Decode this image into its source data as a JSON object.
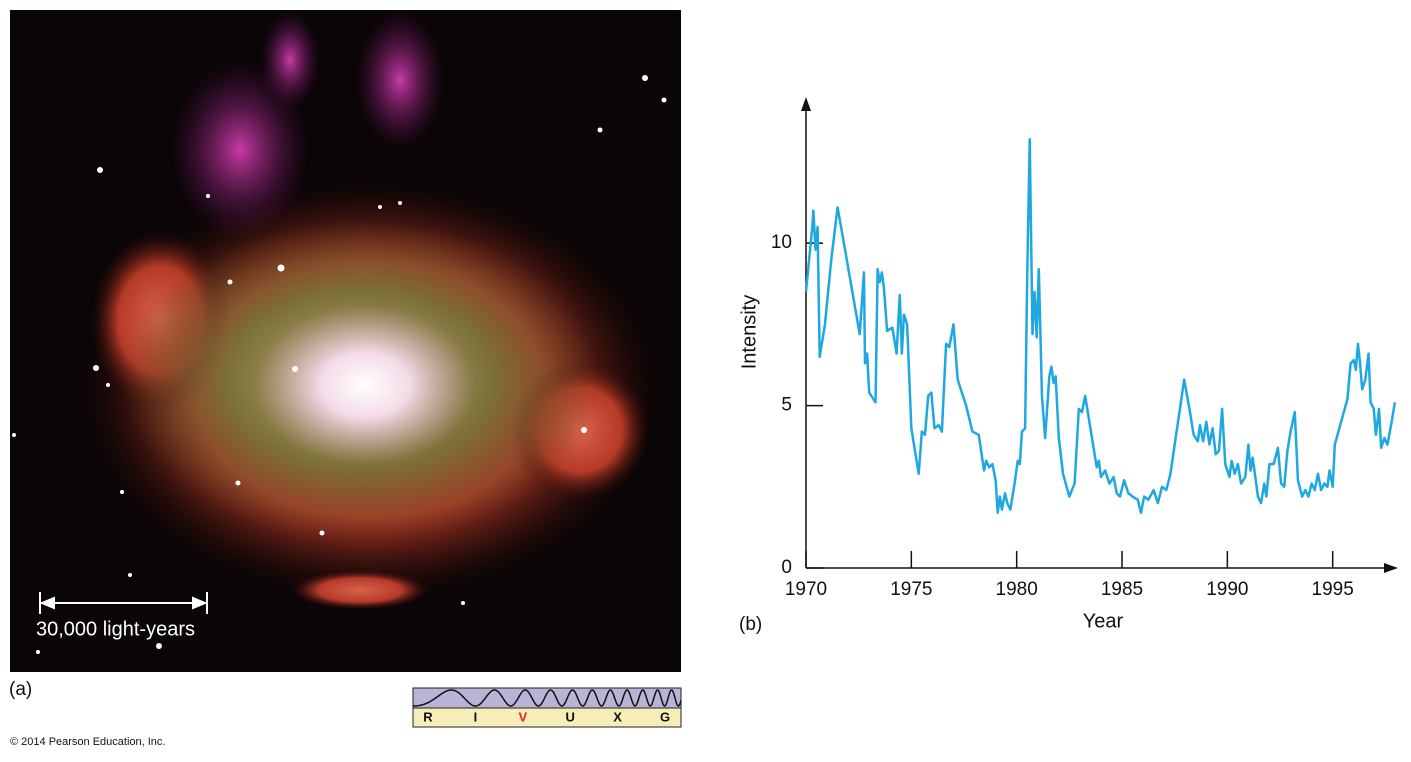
{
  "panel_a": {
    "label": "(a)",
    "scale_bar": "30,000 light-years",
    "spectrum": [
      "R",
      "I",
      "V",
      "U",
      "X",
      "G"
    ],
    "highlighted": "V"
  },
  "credit": "© 2014 Pearson Education, Inc.",
  "chart_data": {
    "type": "line",
    "panel_label": "(b)",
    "xlabel": "Year",
    "ylabel": "Intensity",
    "color": "#1fa8e0",
    "xlim": [
      1970,
      1998.1
    ],
    "ylim": [
      0,
      14.5
    ],
    "xticks": [
      1970,
      1975,
      1980,
      1985,
      1990,
      1995
    ],
    "yticks": [
      0,
      5,
      10
    ],
    "x": [
      1970.0,
      1970.15,
      1970.3,
      1970.35,
      1970.45,
      1970.55,
      1970.65,
      1970.9,
      1971.2,
      1971.5,
      1971.8,
      1972.2,
      1972.55,
      1972.75,
      1972.8,
      1972.9,
      1973.0,
      1973.3,
      1973.4,
      1973.5,
      1973.6,
      1973.7,
      1973.85,
      1974.1,
      1974.3,
      1974.45,
      1974.55,
      1974.65,
      1974.8,
      1975.0,
      1975.2,
      1975.35,
      1975.5,
      1975.65,
      1975.8,
      1975.95,
      1976.1,
      1976.3,
      1976.45,
      1976.65,
      1976.8,
      1977.0,
      1977.2,
      1977.35,
      1977.6,
      1977.9,
      1978.2,
      1978.45,
      1978.55,
      1978.7,
      1978.85,
      1979.0,
      1979.1,
      1979.2,
      1979.3,
      1979.45,
      1979.55,
      1979.7,
      1979.9,
      1980.05,
      1980.15,
      1980.25,
      1980.4,
      1980.5,
      1980.62,
      1980.75,
      1980.85,
      1980.95,
      1981.05,
      1981.2,
      1981.35,
      1981.55,
      1981.65,
      1981.75,
      1981.85,
      1982.0,
      1982.2,
      1982.5,
      1982.75,
      1982.95,
      1983.1,
      1983.25,
      1983.5,
      1983.8,
      1983.9,
      1984.0,
      1984.2,
      1984.4,
      1984.6,
      1984.75,
      1984.9,
      1985.1,
      1985.3,
      1985.5,
      1985.75,
      1985.9,
      1986.05,
      1986.25,
      1986.5,
      1986.7,
      1986.9,
      1987.1,
      1987.3,
      1987.5,
      1987.75,
      1987.95,
      1988.2,
      1988.4,
      1988.6,
      1988.7,
      1988.85,
      1989.0,
      1989.15,
      1989.3,
      1989.45,
      1989.6,
      1989.75,
      1989.9,
      1990.1,
      1990.2,
      1990.35,
      1990.5,
      1990.65,
      1990.85,
      1991.0,
      1991.1,
      1991.2,
      1991.35,
      1991.45,
      1991.6,
      1991.75,
      1991.85,
      1992.0,
      1992.2,
      1992.4,
      1992.55,
      1992.7,
      1992.85,
      1993.0,
      1993.2,
      1993.35,
      1993.55,
      1993.7,
      1993.85,
      1994.0,
      1994.15,
      1994.3,
      1994.45,
      1994.6,
      1994.75,
      1994.85,
      1995.0,
      1995.1,
      1995.4,
      1995.7,
      1995.85,
      1996.0,
      1996.1,
      1996.2,
      1996.3,
      1996.4,
      1996.55,
      1996.7,
      1996.8,
      1996.95,
      1997.05,
      1997.2,
      1997.3,
      1997.45,
      1997.6,
      1997.8,
      1997.95
    ],
    "values": [
      8.5,
      9.5,
      10.5,
      11.0,
      9.8,
      10.5,
      6.5,
      7.5,
      9.5,
      11.1,
      10.0,
      8.5,
      7.2,
      9.1,
      6.3,
      6.6,
      5.4,
      5.1,
      9.2,
      8.8,
      9.1,
      8.6,
      7.3,
      7.4,
      6.6,
      8.4,
      6.6,
      7.8,
      7.5,
      4.3,
      3.5,
      2.9,
      4.2,
      4.1,
      5.3,
      5.4,
      4.3,
      4.4,
      4.2,
      6.9,
      6.8,
      7.5,
      5.8,
      5.5,
      5.0,
      4.2,
      4.1,
      3.0,
      3.3,
      3.1,
      3.2,
      2.7,
      1.7,
      2.2,
      1.8,
      2.3,
      2.0,
      1.8,
      2.6,
      3.3,
      3.2,
      4.2,
      4.3,
      9.0,
      13.2,
      7.2,
      8.5,
      7.1,
      9.2,
      5.3,
      4.0,
      5.9,
      6.2,
      5.7,
      5.9,
      4.0,
      2.9,
      2.2,
      2.6,
      4.9,
      4.8,
      5.3,
      4.3,
      3.1,
      3.3,
      2.8,
      3.0,
      2.6,
      2.8,
      2.3,
      2.2,
      2.7,
      2.3,
      2.2,
      2.1,
      1.7,
      2.2,
      2.1,
      2.4,
      2.0,
      2.5,
      2.4,
      2.9,
      3.8,
      4.9,
      5.8,
      4.9,
      4.1,
      3.9,
      4.4,
      3.9,
      4.5,
      3.8,
      4.3,
      3.5,
      3.6,
      4.9,
      3.2,
      2.8,
      3.3,
      2.9,
      3.2,
      2.6,
      2.8,
      3.8,
      3.0,
      3.4,
      2.7,
      2.2,
      2.0,
      2.6,
      2.2,
      3.2,
      3.2,
      3.7,
      2.6,
      2.5,
      3.6,
      4.2,
      4.8,
      2.7,
      2.2,
      2.4,
      2.2,
      2.6,
      2.4,
      2.9,
      2.4,
      2.6,
      2.5,
      3.0,
      2.5,
      3.8,
      4.5,
      5.2,
      6.3,
      6.4,
      6.1,
      6.9,
      6.3,
      5.5,
      5.8,
      6.6,
      5.1,
      4.9,
      4.1,
      4.9,
      3.7,
      4.0,
      3.8,
      4.5,
      5.1
    ]
  }
}
